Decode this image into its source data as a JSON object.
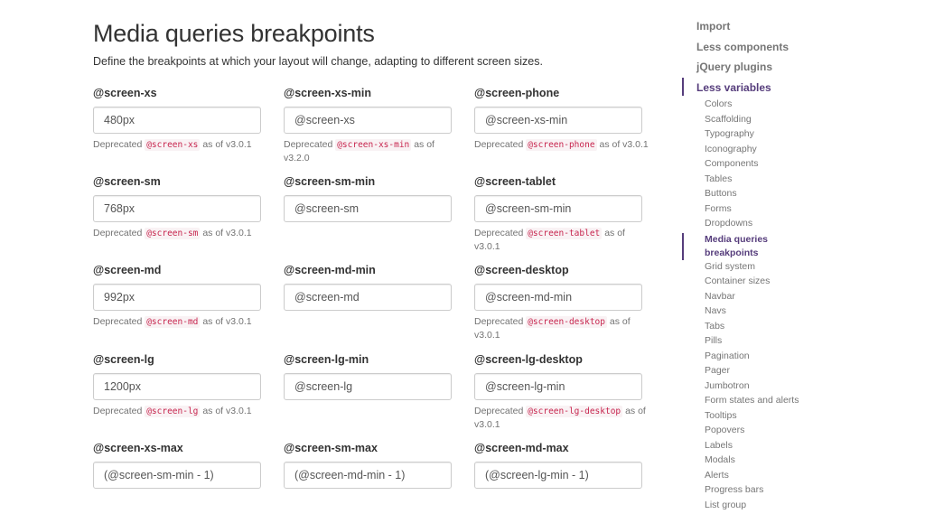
{
  "page": {
    "title": "Media queries breakpoints",
    "subtitle": "Define the breakpoints at which your layout will change, adapting to different screen sizes."
  },
  "fields": [
    {
      "label": "@screen-xs",
      "value": "480px",
      "help": {
        "pre": "Deprecated ",
        "code": "@screen-xs",
        "post": " as of v3.0.1"
      }
    },
    {
      "label": "@screen-xs-min",
      "value": "@screen-xs",
      "help": {
        "pre": "Deprecated ",
        "code": "@screen-xs-min",
        "post": " as of v3.2.0"
      }
    },
    {
      "label": "@screen-phone",
      "value": "@screen-xs-min",
      "help": {
        "pre": "Deprecated ",
        "code": "@screen-phone",
        "post": " as of v3.0.1"
      }
    },
    {
      "label": "@screen-sm",
      "value": "768px",
      "help": {
        "pre": "Deprecated ",
        "code": "@screen-sm",
        "post": " as of v3.0.1"
      }
    },
    {
      "label": "@screen-sm-min",
      "value": "@screen-sm"
    },
    {
      "label": "@screen-tablet",
      "value": "@screen-sm-min",
      "help": {
        "pre": "Deprecated ",
        "code": "@screen-tablet",
        "post": " as of v3.0.1"
      }
    },
    {
      "label": "@screen-md",
      "value": "992px",
      "help": {
        "pre": "Deprecated ",
        "code": "@screen-md",
        "post": " as of v3.0.1"
      }
    },
    {
      "label": "@screen-md-min",
      "value": "@screen-md"
    },
    {
      "label": "@screen-desktop",
      "value": "@screen-md-min",
      "help": {
        "pre": "Deprecated ",
        "code": "@screen-desktop",
        "post": " as of v3.0.1"
      }
    },
    {
      "label": "@screen-lg",
      "value": "1200px",
      "help": {
        "pre": "Deprecated ",
        "code": "@screen-lg",
        "post": " as of v3.0.1"
      }
    },
    {
      "label": "@screen-lg-min",
      "value": "@screen-lg"
    },
    {
      "label": "@screen-lg-desktop",
      "value": "@screen-lg-min",
      "help": {
        "pre": "Deprecated ",
        "code": "@screen-lg-desktop",
        "post": " as of v3.0.1"
      }
    },
    {
      "label": "@screen-xs-max",
      "value": "(@screen-sm-min - 1)"
    },
    {
      "label": "@screen-sm-max",
      "value": "(@screen-md-min - 1)"
    },
    {
      "label": "@screen-md-max",
      "value": "(@screen-lg-min - 1)"
    }
  ],
  "sidenav": {
    "top": [
      "Import",
      "Less components",
      "jQuery plugins",
      "Less variables"
    ],
    "active_top": "Less variables",
    "sub": [
      "Colors",
      "Scaffolding",
      "Typography",
      "Iconography",
      "Components",
      "Tables",
      "Buttons",
      "Forms",
      "Dropdowns",
      "Media queries breakpoints",
      "Grid system",
      "Container sizes",
      "Navbar",
      "Navs",
      "Tabs",
      "Pills",
      "Pagination",
      "Pager",
      "Jumbotron",
      "Form states and alerts",
      "Tooltips",
      "Popovers",
      "Labels",
      "Modals",
      "Alerts",
      "Progress bars",
      "List group"
    ],
    "active_sub": "Media queries breakpoints",
    "active_sub_lines": [
      "Media queries",
      "breakpoints"
    ]
  },
  "colors": {
    "accent": "#563d7c",
    "code_text": "#c7254e",
    "code_bg": "#f9f2f4"
  }
}
